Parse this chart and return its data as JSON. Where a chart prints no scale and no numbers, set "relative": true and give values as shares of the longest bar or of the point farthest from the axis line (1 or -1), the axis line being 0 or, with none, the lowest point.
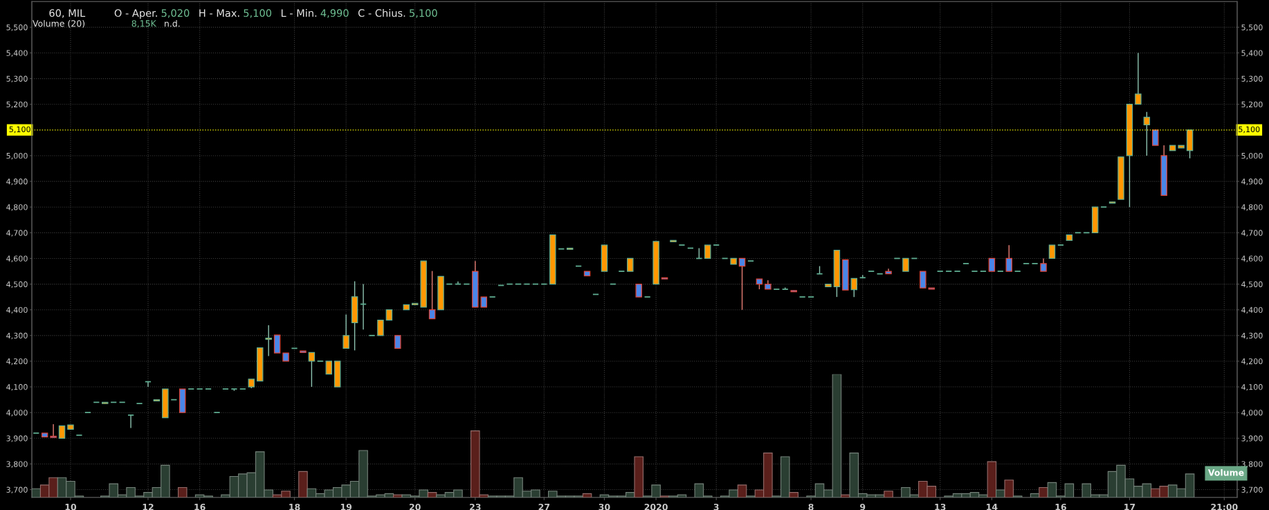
{
  "chart_data": [
    {
      "type": "candlestick",
      "title": "60, MIL",
      "annotations": [
        "O - Aper.",
        "5,020",
        "H - Max.",
        "5,100",
        "L - Min.",
        "4,990",
        "C - Chius.",
        "5,100"
      ],
      "categories": [
        null,
        null,
        null,
        null,
        "10",
        null,
        null,
        null,
        null,
        null,
        null,
        null,
        null,
        "12",
        null,
        null,
        null,
        null,
        null,
        "16",
        null,
        null,
        null,
        null,
        null,
        null,
        null,
        null,
        null,
        null,
        "18",
        null,
        null,
        null,
        null,
        null,
        "19",
        null,
        null,
        null,
        null,
        null,
        null,
        null,
        "20",
        null,
        null,
        null,
        null,
        null,
        null,
        "23",
        null,
        null,
        null,
        null,
        null,
        null,
        null,
        "27",
        null,
        null,
        null,
        null,
        null,
        null,
        "30",
        null,
        null,
        null,
        null,
        null,
        "2020",
        null,
        null,
        null,
        null,
        null,
        null,
        "3",
        null,
        null,
        null,
        null,
        null,
        null,
        null,
        null,
        null,
        null,
        "8",
        null,
        null,
        null,
        null,
        null,
        "9",
        null,
        null,
        null,
        null,
        null,
        null,
        null,
        null,
        "13",
        null,
        null,
        null,
        null,
        null,
        "14",
        null,
        null,
        null,
        null,
        null,
        null,
        null,
        "16",
        null,
        null,
        null,
        null,
        null,
        null,
        null,
        "17",
        null,
        null,
        null,
        null,
        null,
        null,
        null,
        null,
        null,
        null,
        "21:00",
        null
      ],
      "ohlc": [
        [
          3920,
          3920,
          3920,
          3920
        ],
        [
          3920,
          3920,
          3905,
          3905
        ],
        [
          3908,
          3955,
          3903,
          3903
        ],
        [
          3900,
          3948,
          3900,
          3948
        ],
        [
          3935,
          3952,
          3935,
          3952
        ],
        [
          3912,
          3912,
          3912,
          3912
        ],
        [
          4000,
          4000,
          4000,
          4000
        ],
        [
          4040,
          4040,
          4040,
          4040
        ],
        [
          4035,
          4040,
          4035,
          4040
        ],
        [
          4040,
          4040,
          4040,
          4040
        ],
        [
          4040,
          4040,
          4040,
          4040
        ],
        [
          3990,
          3990,
          3940,
          3990
        ],
        [
          4035,
          4035,
          4035,
          4035
        ],
        [
          4120,
          4120,
          4100,
          4120
        ],
        [
          4045,
          4050,
          4045,
          4050
        ],
        [
          3980,
          4092,
          3980,
          4092
        ],
        [
          4050,
          4050,
          4050,
          4050
        ],
        [
          4092,
          4092,
          4000,
          4000
        ],
        [
          4092,
          4092,
          4092,
          4092
        ],
        [
          4092,
          4092,
          4092,
          4092
        ],
        [
          4092,
          4092,
          4092,
          4092
        ],
        [
          4000,
          4000,
          4000,
          4000
        ],
        [
          4092,
          4092,
          4092,
          4092
        ],
        [
          4092,
          4092,
          4085,
          4092
        ],
        [
          4092,
          4092,
          4092,
          4092
        ],
        [
          4100,
          4130,
          4095,
          4130
        ],
        [
          4123,
          4252,
          4123,
          4252
        ],
        [
          4285,
          4340,
          4220,
          4290
        ],
        [
          4302,
          4302,
          4232,
          4232
        ],
        [
          4232,
          4232,
          4200,
          4200
        ],
        [
          4250,
          4250,
          4250,
          4250
        ],
        [
          4240,
          4240,
          4234,
          4234
        ],
        [
          4200,
          4234,
          4100,
          4234
        ],
        [
          4200,
          4200,
          4200,
          4200
        ],
        [
          4150,
          4200,
          4150,
          4200
        ],
        [
          4100,
          4200,
          4100,
          4200
        ],
        [
          4250,
          4382,
          4250,
          4300
        ],
        [
          4350,
          4511,
          4242,
          4451
        ],
        [
          4422,
          4500,
          4323,
          4422
        ],
        [
          4300,
          4300,
          4300,
          4300
        ],
        [
          4300,
          4360,
          4300,
          4360
        ],
        [
          4360,
          4400,
          4360,
          4400
        ],
        [
          4300,
          4300,
          4250,
          4250
        ],
        [
          4400,
          4420,
          4400,
          4420
        ],
        [
          4420,
          4425,
          4420,
          4425
        ],
        [
          4410,
          4590,
          4410,
          4590
        ],
        [
          4400,
          4551,
          4365,
          4365
        ],
        [
          4400,
          4530,
          4400,
          4530
        ],
        [
          4500,
          4500,
          4500,
          4500
        ],
        [
          4500,
          4510,
          4500,
          4500
        ],
        [
          4500,
          4500,
          4500,
          4500
        ],
        [
          4550,
          4590,
          4410,
          4410
        ],
        [
          4450,
          4450,
          4410,
          4410
        ],
        [
          4450,
          4450,
          4450,
          4450
        ],
        [
          4495,
          4495,
          4495,
          4495
        ],
        [
          4500,
          4500,
          4500,
          4500
        ],
        [
          4500,
          4500,
          4500,
          4500
        ],
        [
          4500,
          4500,
          4500,
          4500
        ],
        [
          4500,
          4500,
          4500,
          4500
        ],
        [
          4500,
          4500,
          4500,
          4500
        ],
        [
          4500,
          4692,
          4500,
          4692
        ],
        [
          4637,
          4637,
          4637,
          4637
        ],
        [
          4635,
          4640,
          4635,
          4640
        ],
        [
          4570,
          4570,
          4570,
          4570
        ],
        [
          4550,
          4550,
          4532,
          4532
        ],
        [
          4460,
          4460,
          4460,
          4460
        ],
        [
          4550,
          4652,
          4550,
          4652
        ],
        [
          4500,
          4500,
          4500,
          4500
        ],
        [
          4550,
          4550,
          4550,
          4550
        ],
        [
          4550,
          4600,
          4550,
          4600
        ],
        [
          4500,
          4500,
          4450,
          4450
        ],
        [
          4450,
          4450,
          4450,
          4450
        ],
        [
          4500,
          4666,
          4500,
          4666
        ],
        [
          4525,
          4525,
          4520,
          4520
        ],
        [
          4665,
          4670,
          4665,
          4670
        ],
        [
          4652,
          4652,
          4652,
          4652
        ],
        [
          4640,
          4640,
          4640,
          4640
        ],
        [
          4600,
          4640,
          4600,
          4600
        ],
        [
          4600,
          4652,
          4600,
          4652
        ],
        [
          4652,
          4652,
          4652,
          4652
        ],
        [
          4600,
          4600,
          4600,
          4600
        ],
        [
          4577,
          4600,
          4577,
          4600
        ],
        [
          4600,
          4600,
          4400,
          4570
        ],
        [
          4590,
          4590,
          4590,
          4590
        ],
        [
          4520,
          4520,
          4480,
          4500
        ],
        [
          4500,
          4515,
          4480,
          4480
        ],
        [
          4480,
          4480,
          4480,
          4480
        ],
        [
          4480,
          4487,
          4480,
          4480
        ],
        [
          4475,
          4475,
          4470,
          4470
        ],
        [
          4450,
          4450,
          4450,
          4450
        ],
        [
          4450,
          4450,
          4450,
          4450
        ],
        [
          4540,
          4570,
          4540,
          4540
        ],
        [
          4490,
          4500,
          4490,
          4500
        ],
        [
          4490,
          4632,
          4450,
          4632
        ],
        [
          4595,
          4595,
          4477,
          4477
        ],
        [
          4478,
          4522,
          4450,
          4522
        ],
        [
          4525,
          4535,
          4525,
          4525
        ],
        [
          4550,
          4550,
          4550,
          4550
        ],
        [
          4540,
          4540,
          4540,
          4540
        ],
        [
          4550,
          4560,
          4540,
          4540
        ],
        [
          4600,
          4600,
          4600,
          4600
        ],
        [
          4550,
          4600,
          4550,
          4600
        ],
        [
          4600,
          4600,
          4600,
          4600
        ],
        [
          4550,
          4550,
          4485,
          4485
        ],
        [
          4485,
          4485,
          4480,
          4480
        ],
        [
          4550,
          4550,
          4550,
          4550
        ],
        [
          4550,
          4550,
          4550,
          4550
        ],
        [
          4550,
          4550,
          4550,
          4550
        ],
        [
          4580,
          4580,
          4580,
          4580
        ],
        [
          4550,
          4550,
          4550,
          4550
        ],
        [
          4550,
          4550,
          4550,
          4550
        ],
        [
          4600,
          4600,
          4550,
          4550
        ],
        [
          4550,
          4550,
          4550,
          4550
        ],
        [
          4600,
          4652,
          4550,
          4550
        ],
        [
          4550,
          4550,
          4550,
          4550
        ],
        [
          4580,
          4580,
          4580,
          4580
        ],
        [
          4580,
          4580,
          4580,
          4580
        ],
        [
          4580,
          4600,
          4550,
          4550
        ],
        [
          4600,
          4652,
          4600,
          4652
        ],
        [
          4652,
          4652,
          4652,
          4652
        ],
        [
          4670,
          4692,
          4670,
          4692
        ],
        [
          4700,
          4700,
          4700,
          4700
        ],
        [
          4700,
          4700,
          4700,
          4700
        ],
        [
          4700,
          4800,
          4700,
          4800
        ],
        [
          4800,
          4800,
          4800,
          4800
        ],
        [
          4815,
          4820,
          4815,
          4820
        ],
        [
          4830,
          4995,
          4830,
          4995
        ],
        [
          5000,
          5200,
          4800,
          5200
        ],
        [
          5200,
          5400,
          5200,
          5240
        ],
        [
          5120,
          5170,
          5000,
          5150
        ],
        [
          5100,
          5100,
          5040,
          5040
        ],
        [
          5000,
          5040,
          4845,
          4845
        ],
        [
          5020,
          5040,
          5020,
          5040
        ],
        [
          5030,
          5040,
          5030,
          5040
        ],
        [
          5020,
          5100,
          4990,
          5100
        ],
        null,
        null,
        null,
        null,
        null
      ],
      "colors": [
        "#5fae92",
        "#4a86e8",
        "#4a86e8",
        "#ff9800",
        "#ff9800",
        "#5fae92",
        "#5fae92",
        "#5fae92",
        "#ff9800",
        "#5fae92",
        "#5fae92",
        "#5fae92",
        "#5fae92",
        "#5fae92",
        "#ff9800",
        "#ff9800",
        "#5fae92",
        "#4a86e8",
        "#5fae92",
        "#5fae92",
        "#5fae92",
        "#5fae92",
        "#5fae92",
        "#5fae92",
        "#5fae92",
        "#ff9800",
        "#ff9800",
        "#ff9800",
        "#4a86e8",
        "#4a86e8",
        "#5fae92",
        "#4a86e8",
        "#ff9800",
        "#5fae92",
        "#ff9800",
        "#ff9800",
        "#ff9800",
        "#ff9800",
        "#5fae92",
        "#5fae92",
        "#ff9800",
        "#ff9800",
        "#4a86e8",
        "#ff9800",
        "#ff9800",
        "#ff9800",
        "#4a86e8",
        "#ff9800",
        "#5fae92",
        "#5fae92",
        "#5fae92",
        "#4a86e8",
        "#4a86e8",
        "#5fae92",
        "#5fae92",
        "#5fae92",
        "#5fae92",
        "#5fae92",
        "#5fae92",
        "#5fae92",
        "#ff9800",
        "#5fae92",
        "#ff9800",
        "#5fae92",
        "#4a86e8",
        "#5fae92",
        "#ff9800",
        "#5fae92",
        "#5fae92",
        "#ff9800",
        "#4a86e8",
        "#5fae92",
        "#ff9800",
        "#4a86e8",
        "#ff9800",
        "#5fae92",
        "#5fae92",
        "#5fae92",
        "#ff9800",
        "#5fae92",
        "#5fae92",
        "#ff9800",
        "#4a86e8",
        "#5fae92",
        "#4a86e8",
        "#4a86e8",
        "#5fae92",
        "#5fae92",
        "#4a86e8",
        "#5fae92",
        "#5fae92",
        "#5fae92",
        "#ff9800",
        "#ff9800",
        "#4a86e8",
        "#ff9800",
        "#5fae92",
        "#5fae92",
        "#5fae92",
        "#4a86e8",
        "#5fae92",
        "#ff9800",
        "#5fae92",
        "#4a86e8",
        "#4a86e8",
        "#5fae92",
        "#5fae92",
        "#5fae92",
        "#5fae92",
        "#5fae92",
        "#5fae92",
        "#4a86e8",
        "#5fae92",
        "#4a86e8",
        "#5fae92",
        "#5fae92",
        "#5fae92",
        "#4a86e8",
        "#ff9800",
        "#5fae92",
        "#ff9800",
        "#5fae92",
        "#5fae92",
        "#ff9800",
        "#5fae92",
        "#ff9800",
        "#ff9800",
        "#ff9800",
        "#ff9800",
        "#ff9800",
        "#4a86e8",
        "#4a86e8",
        "#ff9800",
        "#ff9800",
        "#ff9800",
        null,
        null,
        null,
        null,
        null
      ],
      "ylim": [
        3670,
        5600
      ],
      "yticks": [
        {
          "value": 3700,
          "label": "3,700"
        },
        {
          "value": 3800,
          "label": "3,800"
        },
        {
          "value": 3900,
          "label": "3,900"
        },
        {
          "value": 4000,
          "label": "4,000"
        },
        {
          "value": 4100,
          "label": "4,100"
        },
        {
          "value": 4200,
          "label": "4,200"
        },
        {
          "value": 4300,
          "label": "4,300"
        },
        {
          "value": 4400,
          "label": "4,400"
        },
        {
          "value": 4500,
          "label": "4,500"
        },
        {
          "value": 4600,
          "label": "4,600"
        },
        {
          "value": 4700,
          "label": "4,700"
        },
        {
          "value": 4800,
          "label": "4,800"
        },
        {
          "value": 4900,
          "label": "4,900"
        },
        {
          "value": 5000,
          "label": "5,000"
        },
        {
          "value": 5200,
          "label": "5,200"
        },
        {
          "value": 5300,
          "label": "5,300"
        },
        {
          "value": 5400,
          "label": "5,400"
        },
        {
          "value": 5500,
          "label": "5,500"
        }
      ],
      "y2lim": [
        3670,
        5600
      ],
      "y2ticks": [
        {
          "value": 3700,
          "label": "3,700"
        },
        {
          "value": 3800,
          "label": "3,800"
        },
        {
          "value": 3900,
          "label": "3,900"
        },
        {
          "value": 4000,
          "label": "4,000"
        },
        {
          "value": 4100,
          "label": "4,100"
        },
        {
          "value": 4200,
          "label": "4,200"
        },
        {
          "value": 4300,
          "label": "4,300"
        },
        {
          "value": 4400,
          "label": "4,400"
        },
        {
          "value": 4500,
          "label": "4,500"
        },
        {
          "value": 4600,
          "label": "4,600"
        },
        {
          "value": 4700,
          "label": "4,700"
        },
        {
          "value": 4800,
          "label": "4,800"
        },
        {
          "value": 4900,
          "label": "4,900"
        },
        {
          "value": 5000,
          "label": "5,000"
        },
        {
          "value": 5200,
          "label": "5,200"
        },
        {
          "value": 5300,
          "label": "5,300"
        },
        {
          "value": 5400,
          "label": "5,400"
        },
        {
          "value": 5500,
          "label": "5,500"
        }
      ],
      "ref_lines": [
        {
          "axis": "y",
          "value": 5100,
          "label": "5,100",
          "color": "#ffff00",
          "line_style": "dotted"
        }
      ],
      "grid": true
    },
    {
      "type": "bar",
      "relative": true,
      "annotations": [
        "Volume (20)",
        "8,15K",
        "n.d.",
        "Volume"
      ],
      "categories": [
        null,
        null,
        null,
        null,
        null,
        null,
        null,
        null,
        null,
        null,
        null,
        null,
        null,
        null,
        null,
        null,
        null,
        null,
        null,
        null,
        null,
        null,
        null,
        null,
        null,
        null,
        null,
        null,
        null,
        null,
        null,
        null,
        null,
        null,
        null,
        null,
        null,
        null,
        null,
        null,
        null,
        null,
        null,
        null,
        null,
        null,
        null,
        null,
        null,
        null,
        null,
        null,
        null,
        null,
        null,
        null,
        null,
        null,
        null,
        null,
        null,
        null,
        null,
        null,
        null,
        null,
        null,
        null,
        null,
        null,
        null,
        null,
        null,
        null,
        null,
        null,
        null,
        null,
        null,
        null,
        null,
        null,
        null,
        null,
        null,
        null,
        null,
        null,
        null,
        null,
        null,
        null,
        null,
        null,
        null,
        null,
        null,
        null,
        null,
        null,
        null,
        null,
        null,
        null,
        null,
        null,
        null,
        null,
        null,
        null,
        null,
        null,
        null,
        null,
        null,
        null,
        null,
        null,
        null,
        null,
        null,
        null,
        null,
        null,
        null,
        null,
        null,
        null,
        null,
        null,
        null,
        null,
        null,
        null,
        null,
        null,
        null,
        null,
        null,
        null
      ],
      "values": [
        0.07,
        0.1,
        0.16,
        0.16,
        0.13,
        0.01,
        0,
        0,
        0.01,
        0.11,
        0.02,
        0.08,
        0.01,
        0.04,
        0.08,
        0.26,
        0,
        0.08,
        0,
        0.02,
        0.01,
        0,
        0.02,
        0.17,
        0.19,
        0.2,
        0.37,
        0.06,
        0.02,
        0.05,
        0,
        0.21,
        0.07,
        0.03,
        0.06,
        0.08,
        0.1,
        0.13,
        0.38,
        0.01,
        0.02,
        0.03,
        0.02,
        0.02,
        0.01,
        0.06,
        0.04,
        0.02,
        0.04,
        0.06,
        0,
        0.54,
        0.02,
        0.01,
        0.01,
        0.01,
        0.16,
        0.05,
        0.06,
        0,
        0.05,
        0.01,
        0.01,
        0.01,
        0.03,
        0,
        0.02,
        0.01,
        0.01,
        0.04,
        0.33,
        0.01,
        0.1,
        0.01,
        0.01,
        0.02,
        0,
        0.11,
        0.01,
        0,
        0.01,
        0.06,
        0.1,
        0.01,
        0.06,
        0.36,
        0.01,
        0.33,
        0.04,
        0,
        0.01,
        0.11,
        0.06,
        1,
        0.02,
        0.36,
        0.03,
        0.02,
        0.02,
        0.05,
        0,
        0.08,
        0.02,
        0.13,
        0.09,
        0,
        0.01,
        0.03,
        0.03,
        0.04,
        0.02,
        0.29,
        0.06,
        0.14,
        0.01,
        0,
        0.03,
        0.08,
        0.12,
        0.01,
        0.11,
        0,
        0.11,
        0.02,
        0.02,
        0.21,
        0.26,
        0.15,
        0.09,
        0.11,
        0.07,
        0.09,
        0.1,
        0.07,
        0.19,
        null,
        null,
        null,
        null,
        null
      ],
      "colors": [
        "#2a3e32",
        "#5a1f1b",
        "#5a1f1b",
        "#2a3e32",
        "#2a3e32",
        "#2a3e32",
        "#2a3e32",
        "#2a3e32",
        "#2a3e32",
        "#2a3e32",
        "#2a3e32",
        "#2a3e32",
        "#2a3e32",
        "#2a3e32",
        "#2a3e32",
        "#2a3e32",
        "#2a3e32",
        "#5a1f1b",
        "#2a3e32",
        "#2a3e32",
        "#2a3e32",
        "#2a3e32",
        "#2a3e32",
        "#2a3e32",
        "#2a3e32",
        "#2a3e32",
        "#2a3e32",
        "#2a3e32",
        "#5a1f1b",
        "#5a1f1b",
        "#2a3e32",
        "#5a1f1b",
        "#2a3e32",
        "#2a3e32",
        "#2a3e32",
        "#2a3e32",
        "#2a3e32",
        "#2a3e32",
        "#2a3e32",
        "#2a3e32",
        "#2a3e32",
        "#2a3e32",
        "#5a1f1b",
        "#2a3e32",
        "#2a3e32",
        "#2a3e32",
        "#5a1f1b",
        "#2a3e32",
        "#2a3e32",
        "#2a3e32",
        "#2a3e32",
        "#5a1f1b",
        "#5a1f1b",
        "#2a3e32",
        "#2a3e32",
        "#2a3e32",
        "#2a3e32",
        "#2a3e32",
        "#2a3e32",
        "#2a3e32",
        "#2a3e32",
        "#2a3e32",
        "#2a3e32",
        "#2a3e32",
        "#5a1f1b",
        "#2a3e32",
        "#2a3e32",
        "#2a3e32",
        "#2a3e32",
        "#2a3e32",
        "#5a1f1b",
        "#2a3e32",
        "#2a3e32",
        "#5a1f1b",
        "#2a3e32",
        "#2a3e32",
        "#2a3e32",
        "#2a3e32",
        "#2a3e32",
        "#2a3e32",
        "#2a3e32",
        "#2a3e32",
        "#5a1f1b",
        "#2a3e32",
        "#5a1f1b",
        "#5a1f1b",
        "#2a3e32",
        "#2a3e32",
        "#5a1f1b",
        "#2a3e32",
        "#2a3e32",
        "#2a3e32",
        "#2a3e32",
        "#2a3e32",
        "#5a1f1b",
        "#2a3e32",
        "#2a3e32",
        "#2a3e32",
        "#2a3e32",
        "#5a1f1b",
        "#2a3e32",
        "#2a3e32",
        "#2a3e32",
        "#5a1f1b",
        "#5a1f1b",
        "#2a3e32",
        "#2a3e32",
        "#2a3e32",
        "#2a3e32",
        "#2a3e32",
        "#2a3e32",
        "#5a1f1b",
        "#2a3e32",
        "#5a1f1b",
        "#2a3e32",
        "#2a3e32",
        "#2a3e32",
        "#5a1f1b",
        "#2a3e32",
        "#2a3e32",
        "#2a3e32",
        "#2a3e32",
        "#2a3e32",
        "#2a3e32",
        "#2a3e32",
        "#2a3e32",
        "#2a3e32",
        "#2a3e32",
        "#2a3e32",
        "#2a3e32",
        "#5a1f1b",
        "#5a1f1b",
        "#2a3e32",
        "#2a3e32",
        "#2a3e32",
        null,
        null,
        null,
        null,
        null
      ]
    }
  ]
}
